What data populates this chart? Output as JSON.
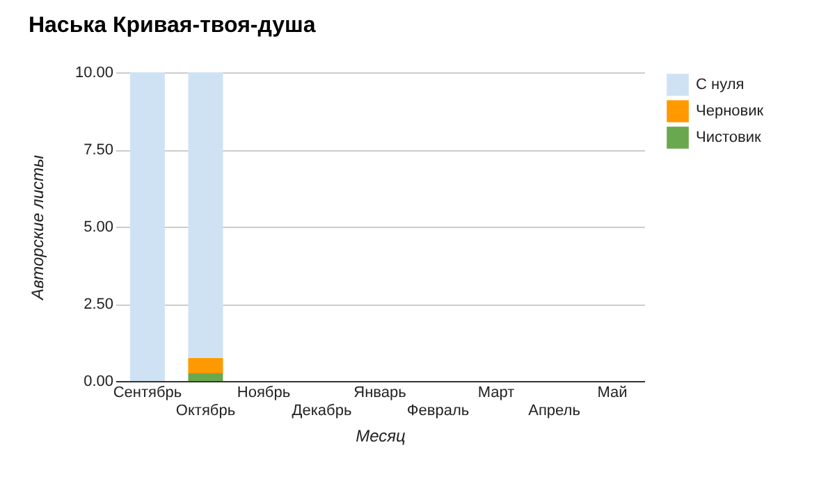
{
  "chart_data": {
    "type": "bar",
    "title": "Наська Кривая-твоя-душа",
    "xlabel": "Месяц",
    "ylabel": "Авторские листы",
    "stacked": true,
    "categories": [
      "Сентябрь",
      "Октябрь",
      "Ноябрь",
      "Декабрь",
      "Январь",
      "Февраль",
      "Март",
      "Апрель",
      "Май"
    ],
    "series": [
      {
        "name": "Чистовик",
        "color": "#6aa84f",
        "values": [
          0,
          0.25,
          0,
          0,
          0,
          0,
          0,
          0,
          0
        ]
      },
      {
        "name": "Черновик",
        "color": "#ff9900",
        "values": [
          0,
          0.5,
          0,
          0,
          0,
          0,
          0,
          0,
          0
        ]
      },
      {
        "name": "С нуля",
        "color": "#cfe2f3",
        "values": [
          10,
          9.25,
          0,
          0,
          0,
          0,
          0,
          0,
          0
        ]
      }
    ],
    "ylim": [
      0,
      10
    ],
    "yticks": [
      {
        "value": 0,
        "label": "0.00"
      },
      {
        "value": 2.5,
        "label": "2.50"
      },
      {
        "value": 5,
        "label": "5.00"
      },
      {
        "value": 7.5,
        "label": "7.50"
      },
      {
        "value": 10,
        "label": "10.00"
      }
    ],
    "grid": "y",
    "legend": "top right"
  }
}
